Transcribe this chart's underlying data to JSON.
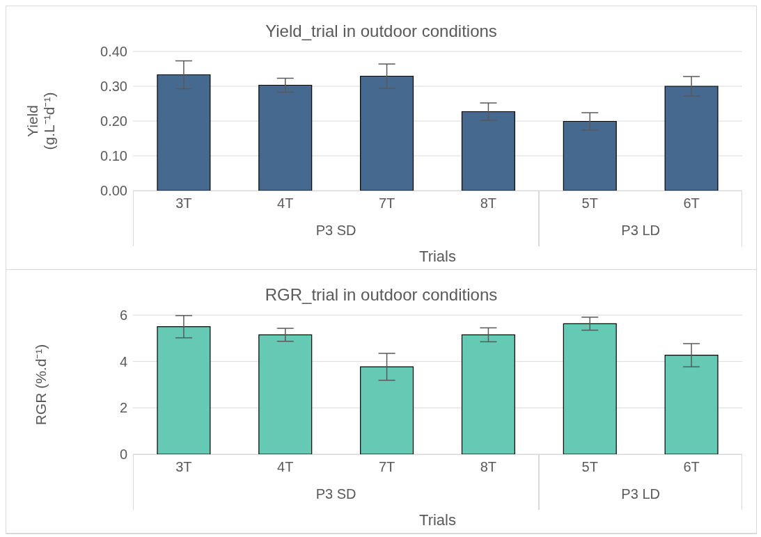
{
  "chart_data": [
    {
      "type": "bar",
      "title": "Yield_trial in outdoor conditions",
      "xlabel": "Trials",
      "ylabel": "Yield (g.L⁻¹d⁻¹)",
      "categories": [
        "3T",
        "4T",
        "7T",
        "8T",
        "5T",
        "6T"
      ],
      "values": [
        0.333,
        0.303,
        0.329,
        0.227,
        0.199,
        0.3
      ],
      "errors": [
        0.04,
        0.02,
        0.035,
        0.025,
        0.025,
        0.028
      ],
      "color": "#466a8f",
      "ylim": [
        0,
        0.4
      ],
      "yticks": [
        {
          "value": 0,
          "label": "0.00"
        },
        {
          "value": 0.1,
          "label": "0.10"
        },
        {
          "value": 0.2,
          "label": "0.20"
        },
        {
          "value": 0.3,
          "label": "0.30"
        },
        {
          "value": 0.4,
          "label": "0.40"
        }
      ],
      "grid": "y",
      "annotations": [
        "P3 SD",
        "P3 LD"
      ]
    },
    {
      "type": "bar",
      "title": "RGR_trial in outdoor conditions",
      "xlabel": "Trials",
      "ylabel": "RGR (%.d⁻¹)",
      "categories": [
        "3T",
        "4T",
        "7T",
        "8T",
        "5T",
        "6T"
      ],
      "values": [
        5.5,
        5.15,
        3.77,
        5.15,
        5.63,
        4.27
      ],
      "errors": [
        0.48,
        0.28,
        0.58,
        0.3,
        0.28,
        0.5
      ],
      "color": "#66c9b4",
      "ylim": [
        0,
        6
      ],
      "yticks": [
        0,
        2,
        4,
        6
      ],
      "grid": "y",
      "annotations": [
        "P3 SD",
        "P3 LD"
      ]
    }
  ]
}
